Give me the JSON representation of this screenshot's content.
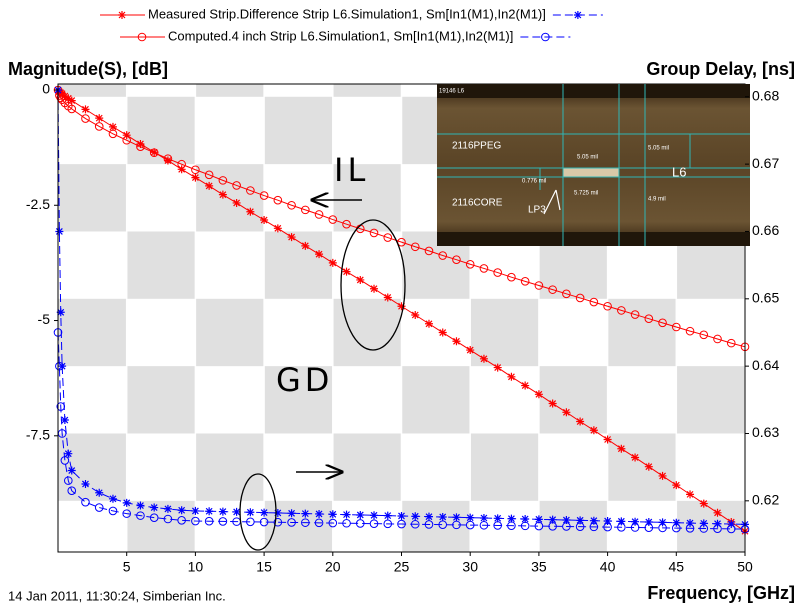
{
  "chart_data": {
    "type": "line",
    "ylabel": "Magnitude(S), [dB]",
    "y2label": "Group Delay, [ns]",
    "xlabel": "Frequency, [GHz]",
    "footer": "14 Jan 2011, 11:30:24, Simberian Inc.",
    "annotations": [
      "IL",
      "GD"
    ],
    "inset": {
      "labels": [
        "19146 L6",
        "2116PPEG",
        "2116CORE",
        "L6",
        "LP3",
        "5.05 mil",
        "5.05 mil",
        "0.776 mil",
        "5.725 mil",
        "4.9 mil"
      ]
    },
    "xlim": [
      0,
      50
    ],
    "xticks": [
      5,
      10,
      15,
      20,
      25,
      30,
      35,
      40,
      45,
      50
    ],
    "ylim": [
      -10.02,
      0.13
    ],
    "yticks": [
      0,
      -2.5,
      -5,
      -7.5
    ],
    "y2lim": [
      0.6124,
      0.6819
    ],
    "y2ticks": [
      0.62,
      0.63,
      0.64,
      0.65,
      0.66,
      0.67,
      0.68
    ],
    "grid": true,
    "x": [
      0,
      0.1,
      0.2,
      0.3,
      0.5,
      0.75,
      1,
      2,
      3,
      4,
      5,
      6,
      7,
      8,
      9,
      10,
      11,
      12,
      13,
      14,
      15,
      16,
      17,
      18,
      19,
      20,
      21,
      22,
      23,
      24,
      25,
      26,
      27,
      28,
      29,
      30,
      31,
      32,
      33,
      34,
      35,
      36,
      37,
      38,
      39,
      40,
      41,
      42,
      43,
      44,
      45,
      46,
      47,
      48,
      49,
      50
    ],
    "series": [
      {
        "name": "Measured Strip.Difference Strip L6.Simulation1, Sm[In1(M1),In2(M1)]",
        "color": "#ff0000",
        "marker": "asterisk",
        "dashed": false,
        "values": [
          0,
          -0.04,
          -0.06,
          -0.08,
          -0.13,
          -0.18,
          -0.23,
          -0.42,
          -0.61,
          -0.8,
          -0.98,
          -1.17,
          -1.35,
          -1.53,
          -1.72,
          -1.9,
          -2.08,
          -2.27,
          -2.45,
          -2.64,
          -2.82,
          -3.0,
          -3.19,
          -3.38,
          -3.56,
          -3.75,
          -3.94,
          -4.12,
          -4.31,
          -4.5,
          -4.69,
          -4.88,
          -5.07,
          -5.26,
          -5.45,
          -5.64,
          -5.83,
          -6.02,
          -6.22,
          -6.41,
          -6.6,
          -6.8,
          -6.99,
          -7.19,
          -7.38,
          -7.58,
          -7.78,
          -7.97,
          -8.17,
          -8.37,
          -8.57,
          -8.77,
          -8.97,
          -9.17,
          -9.37,
          -9.57
        ]
      },
      {
        "name": "Computed.4 inch Strip L6.Simulation1, Sm[In1(M1),In2(M1)]",
        "color": "#ff0000",
        "marker": "circle",
        "dashed": false,
        "values": [
          0,
          -0.12,
          -0.17,
          -0.21,
          -0.28,
          -0.35,
          -0.41,
          -0.62,
          -0.79,
          -0.95,
          -1.09,
          -1.23,
          -1.36,
          -1.49,
          -1.61,
          -1.73,
          -1.84,
          -1.96,
          -2.07,
          -2.18,
          -2.29,
          -2.39,
          -2.5,
          -2.6,
          -2.7,
          -2.81,
          -2.91,
          -3.01,
          -3.1,
          -3.2,
          -3.3,
          -3.4,
          -3.49,
          -3.59,
          -3.68,
          -3.78,
          -3.87,
          -3.96,
          -4.06,
          -4.15,
          -4.24,
          -4.33,
          -4.42,
          -4.51,
          -4.6,
          -4.69,
          -4.78,
          -4.87,
          -4.96,
          -5.05,
          -5.14,
          -5.23,
          -5.31,
          -5.4,
          -5.49,
          -5.57
        ]
      },
      {
        "color": "#0000ff",
        "marker": "asterisk",
        "dashed": true,
        "axis": "y2",
        "values": [
          0.681,
          0.66,
          0.648,
          0.64,
          0.632,
          0.627,
          0.6245,
          0.6225,
          0.6212,
          0.6203,
          0.6197,
          0.6193,
          0.619,
          0.6188,
          0.6186,
          0.6185,
          0.61845,
          0.6184,
          0.61835,
          0.6183,
          0.61825,
          0.6182,
          0.61815,
          0.6181,
          0.61805,
          0.618,
          0.61795,
          0.6179,
          0.61785,
          0.6178,
          0.61775,
          0.6177,
          0.61765,
          0.6176,
          0.61755,
          0.6175,
          0.61745,
          0.6174,
          0.61735,
          0.6173,
          0.61725,
          0.6172,
          0.61715,
          0.6171,
          0.61705,
          0.617,
          0.61695,
          0.6169,
          0.61685,
          0.6168,
          0.61675,
          0.6167,
          0.61665,
          0.6166,
          0.61655,
          0.6165
        ]
      },
      {
        "color": "#0000ff",
        "marker": "circle",
        "dashed": true,
        "axis": "y2",
        "values": [
          0.645,
          0.64,
          0.634,
          0.63,
          0.626,
          0.623,
          0.6215,
          0.6198,
          0.619,
          0.6185,
          0.6181,
          0.6178,
          0.6175,
          0.6173,
          0.6171,
          0.617,
          0.61697,
          0.61694,
          0.61691,
          0.61688,
          0.61685,
          0.61682,
          0.61679,
          0.61676,
          0.61673,
          0.6167,
          0.61667,
          0.61664,
          0.61661,
          0.61658,
          0.61655,
          0.61652,
          0.61649,
          0.61646,
          0.61643,
          0.6164,
          0.61637,
          0.61634,
          0.61631,
          0.61628,
          0.61625,
          0.61622,
          0.61619,
          0.61616,
          0.61613,
          0.6161,
          0.61607,
          0.61604,
          0.61601,
          0.61598,
          0.61595,
          0.61592,
          0.61589,
          0.61586,
          0.61583,
          0.6158
        ]
      }
    ]
  }
}
